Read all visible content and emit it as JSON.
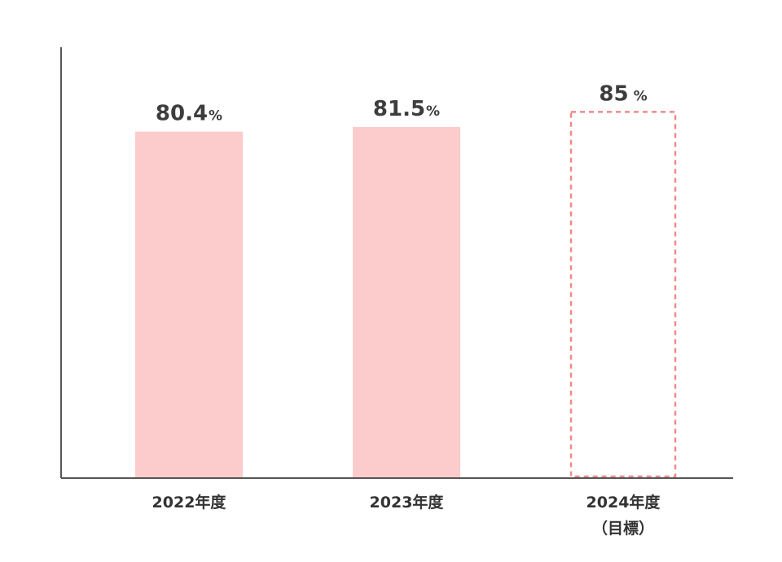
{
  "chart_data": {
    "type": "bar",
    "categories": [
      "2022年度",
      "2023年度",
      "2024年度"
    ],
    "category_sublabels": [
      "",
      "",
      "（目標）"
    ],
    "values": [
      80.4,
      81.5,
      85
    ],
    "value_labels": [
      "80.4",
      "81.5",
      "85"
    ],
    "unit": "%",
    "bar_styles": [
      "solid",
      "solid",
      "dashed"
    ],
    "title": "",
    "xlabel": "",
    "ylabel": "",
    "ylim": [
      0,
      100
    ],
    "grid": false,
    "legend": "none"
  },
  "colors": {
    "bar_fill": "#fccbcb",
    "target_stroke": "#f08a8a",
    "axis": "#555555",
    "text": "#3d3d3d"
  }
}
